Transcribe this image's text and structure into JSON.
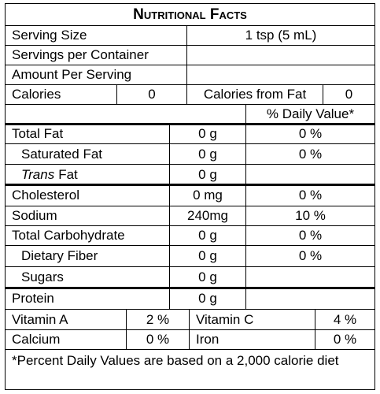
{
  "title": "Nutritional Facts",
  "serving_size": {
    "label": "Serving Size",
    "value": "1 tsp (5 mL)"
  },
  "servings_per_container": {
    "label": "Servings per Container"
  },
  "amount_per_serving": {
    "label": "Amount Per Serving"
  },
  "calories": {
    "label": "Calories",
    "value": "0"
  },
  "calories_from_fat": {
    "label": "Calories from Fat",
    "value": "0"
  },
  "daily_value_header": "% Daily Value*",
  "nutrients": [
    {
      "label": "Total Fat",
      "amount": "0 g",
      "daily_value": "0 %"
    },
    {
      "label": "Saturated Fat",
      "amount": "0 g",
      "daily_value": "0 %"
    },
    {
      "label_italic": "Trans",
      "label": "Fat",
      "amount": "0 g"
    },
    {
      "label": "Cholesterol",
      "amount": "0 mg",
      "daily_value": "0 %"
    },
    {
      "label": "Sodium",
      "amount": "240mg",
      "daily_value": "10 %"
    },
    {
      "label": "Total Carbohydrate",
      "amount": "0 g",
      "daily_value": "0 %"
    },
    {
      "label": "Dietary Fiber",
      "amount": "0 g",
      "daily_value": "0 %"
    },
    {
      "label": "Sugars",
      "amount": "0 g"
    },
    {
      "label": "Protein",
      "amount": "0 g"
    }
  ],
  "vitamins": [
    [
      {
        "label": "Vitamin A",
        "value": "2 %"
      },
      {
        "label": "Vitamin C",
        "value": "4 %"
      }
    ],
    [
      {
        "label": "Calcium",
        "value": "0 %"
      },
      {
        "label": "Iron",
        "value": "0 %"
      }
    ]
  ],
  "footnote": "*Percent Daily Values are based on a 2,000 calorie diet"
}
